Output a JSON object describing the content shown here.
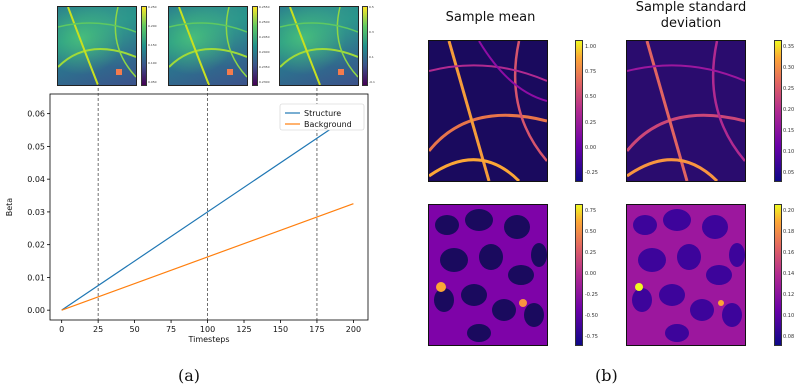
{
  "panel_a": {
    "caption": "(a)",
    "thumbnails": [
      {
        "name": "thumb-t25",
        "cbar_ticks": [
          "0.250",
          "0.225",
          "0.200",
          "0.175",
          "0.150",
          "0.125",
          "0.100",
          "0.075",
          "0.050"
        ]
      },
      {
        "name": "thumb-t100",
        "cbar_ticks": [
          "0.2550",
          "0.2525",
          "0.2500",
          "0.2475",
          "0.2450",
          "0.2425",
          "0.2400",
          "0.2375",
          "0.2350",
          "0.2325",
          "0.2300"
        ]
      },
      {
        "name": "thumb-t175",
        "cbar_ticks": [
          "0.5",
          "0.4",
          "0.3",
          "0.2",
          "0.1",
          "0.0",
          "-0.1",
          "-0.2"
        ]
      }
    ],
    "chart_data": {
      "type": "line",
      "xlabel": "Timesteps",
      "ylabel": "Beta",
      "xlim": [
        -8,
        210
      ],
      "ylim": [
        -0.003,
        0.066
      ],
      "xticks": [
        "0",
        "25",
        "50",
        "75",
        "100",
        "125",
        "150",
        "175",
        "200"
      ],
      "yticks": [
        "0.00",
        "0.01",
        "0.02",
        "0.03",
        "0.04",
        "0.05",
        "0.06"
      ],
      "vlines": [
        25,
        100,
        175
      ],
      "legend_position": "top-right",
      "series": [
        {
          "name": "Structure",
          "color": "#1f77b4",
          "x": [
            0,
            200
          ],
          "y": [
            0.0,
            0.06
          ]
        },
        {
          "name": "Background",
          "color": "#ff7f0e",
          "x": [
            0,
            200
          ],
          "y": [
            0.0,
            0.0325
          ]
        }
      ]
    }
  },
  "panel_b": {
    "caption": "(b)",
    "col_titles": [
      "Sample mean",
      "Sample standard deviation"
    ],
    "rows": [
      {
        "mean_ticks": [
          "1.00",
          "0.75",
          "0.50",
          "0.25",
          "0.00",
          "-0.25"
        ],
        "std_ticks": [
          "0.35",
          "0.30",
          "0.25",
          "0.20",
          "0.15",
          "0.10",
          "0.05"
        ]
      },
      {
        "mean_ticks": [
          "0.75",
          "0.50",
          "0.25",
          "0.00",
          "-0.25",
          "-0.50",
          "-0.75"
        ],
        "std_ticks": [
          "0.20",
          "0.18",
          "0.16",
          "0.14",
          "0.12",
          "0.10",
          "0.08"
        ]
      }
    ]
  }
}
